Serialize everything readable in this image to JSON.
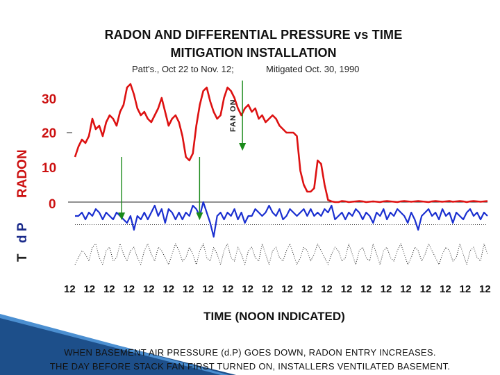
{
  "chart_data": {
    "type": "line",
    "title": "RADON  AND  DIFFERENTIAL PRESSURE vs TIME",
    "title2": "MITIGATION INSTALLATION",
    "subtitle_left": "Patt's.,  Oct 22 to Nov. 12;",
    "subtitle_right": "Mitigated Oct. 30, 1990",
    "xlabel": "TIME  (NOON INDICATED)",
    "ylabel_radon": "RADON",
    "ylabel_dp": "d P",
    "ylabel_t": "T",
    "yticks": [
      "30",
      "20",
      "10",
      "0"
    ],
    "ylim": [
      0,
      36
    ],
    "xticks": [
      "12",
      "12",
      "12",
      "12",
      "12",
      "12",
      "12",
      "12",
      "12",
      "12",
      "12",
      "12",
      "12",
      "12",
      "12",
      "12",
      "12",
      "12",
      "12",
      "12",
      "12",
      "12"
    ],
    "annotation": "FAN ON",
    "series": [
      {
        "name": "RADON",
        "color": "#dd1111",
        "values": [
          13,
          16,
          18,
          17,
          19,
          24,
          21,
          22,
          19,
          23,
          25,
          24,
          22,
          26,
          28,
          33,
          34,
          31,
          27,
          25,
          26,
          24,
          23,
          25,
          27,
          30,
          26,
          22,
          24,
          25,
          23,
          19,
          13,
          12,
          14,
          22,
          28,
          32,
          33,
          29,
          26,
          24,
          25,
          30,
          33,
          32,
          30,
          27,
          25,
          27,
          28,
          26,
          27,
          24,
          25,
          23,
          24,
          25,
          24,
          22,
          21,
          20,
          20,
          20,
          19,
          9,
          5,
          3,
          3,
          4,
          12,
          11,
          5,
          0.6,
          0.2,
          0,
          0,
          0.3,
          0.2,
          0,
          0.1,
          0.2,
          0.3,
          0.2,
          0,
          0.1,
          0.2,
          0.1,
          0,
          0.2,
          0.3,
          0.2,
          0.1,
          0,
          0.2,
          0.3,
          0.2,
          0.1,
          0.2,
          0.3,
          0.2,
          0.1,
          0,
          0.2,
          0.3,
          0.2,
          0.1,
          0.2,
          0.3,
          0.1,
          0.2,
          0.3,
          0.2,
          0,
          0.2,
          0.3,
          0.2,
          0.1,
          0.2,
          0.3
        ]
      },
      {
        "name": "d P",
        "color": "#1a2fd0",
        "values": [
          -4,
          -4,
          -3,
          -5,
          -3,
          -4,
          -2,
          -3,
          -5,
          -3,
          -4,
          -5,
          -3,
          -4,
          -5,
          -6,
          -4,
          -8,
          -4,
          -5,
          -3,
          -5,
          -3,
          -1,
          -4,
          -2,
          -6,
          -2,
          -3,
          -5,
          -3,
          -5,
          -3,
          -4,
          -1,
          -2,
          -4,
          0,
          -3,
          -6,
          -10,
          -4,
          -3,
          -5,
          -3,
          -4,
          -2,
          -5,
          -3,
          -6,
          -4,
          -4,
          -2,
          -3,
          -4,
          -3,
          -1,
          -3,
          -4,
          -2,
          -5,
          -4,
          -2,
          -3,
          -4,
          -3,
          -2,
          -4,
          -2,
          -4,
          -3,
          -4,
          -2,
          -3,
          -1,
          -5,
          -4,
          -3,
          -5,
          -3,
          -4,
          -2,
          -3,
          -5,
          -3,
          -4,
          -6,
          -3,
          -4,
          -2,
          -5,
          -3,
          -4,
          -2,
          -3,
          -4,
          -6,
          -3,
          -5,
          -8,
          -4,
          -3,
          -2,
          -4,
          -3,
          -5,
          -2,
          -4,
          -3,
          -6,
          -3,
          -4,
          -5,
          -3,
          -2,
          -4,
          -3,
          -5,
          -3,
          -4
        ]
      },
      {
        "name": "T",
        "color": "#222222",
        "values": [
          -18,
          -16,
          -14,
          -15,
          -17,
          -13,
          -12,
          -16,
          -18,
          -14,
          -13,
          -17,
          -16,
          -12,
          -15,
          -17,
          -14,
          -13,
          -16,
          -18,
          -14,
          -12,
          -15,
          -17,
          -13,
          -14,
          -16,
          -18,
          -15,
          -12,
          -14,
          -17,
          -16,
          -13,
          -15,
          -18,
          -14,
          -12,
          -16,
          -17,
          -13,
          -15,
          -18,
          -14,
          -12,
          -16,
          -17,
          -13,
          -15,
          -18,
          -14,
          -13,
          -16,
          -17,
          -12,
          -15,
          -18,
          -14,
          -13,
          -16,
          -17,
          -14,
          -12,
          -15,
          -18,
          -16,
          -13,
          -14,
          -17,
          -15,
          -12,
          -14,
          -16,
          -18,
          -15,
          -13,
          -14,
          -17,
          -16,
          -12,
          -15,
          -18,
          -14,
          -13,
          -16,
          -17,
          -12,
          -15,
          -18,
          -14,
          -13,
          -16,
          -17,
          -14,
          -12,
          -15,
          -18,
          -16,
          -13,
          -14,
          -17,
          -15,
          -12,
          -14,
          -16,
          -18,
          -15,
          -13,
          -14,
          -17,
          -16,
          -12,
          -15,
          -18,
          -14,
          -13,
          -16,
          -17,
          -12,
          -15
        ]
      }
    ],
    "arrows": [
      {
        "color": "#1a8a1a",
        "x_frac": 0.113,
        "from": 13,
        "to": -5
      },
      {
        "color": "#1a8a1a",
        "x_frac": 0.302,
        "from": 13,
        "to": -5
      },
      {
        "color": "#1a8a1a",
        "x_frac": 0.406,
        "from": 35,
        "to": 15
      }
    ],
    "grid": false
  },
  "caption": {
    "line1": "WHEN BASEMENT AIR PRESSURE (d.P) GOES DOWN, RADON ENTRY INCREASES.",
    "line2": "THE DAY BEFORE STACK FAN FIRST TURNED ON, INSTALLERS VENTILATED BASEMENT."
  }
}
